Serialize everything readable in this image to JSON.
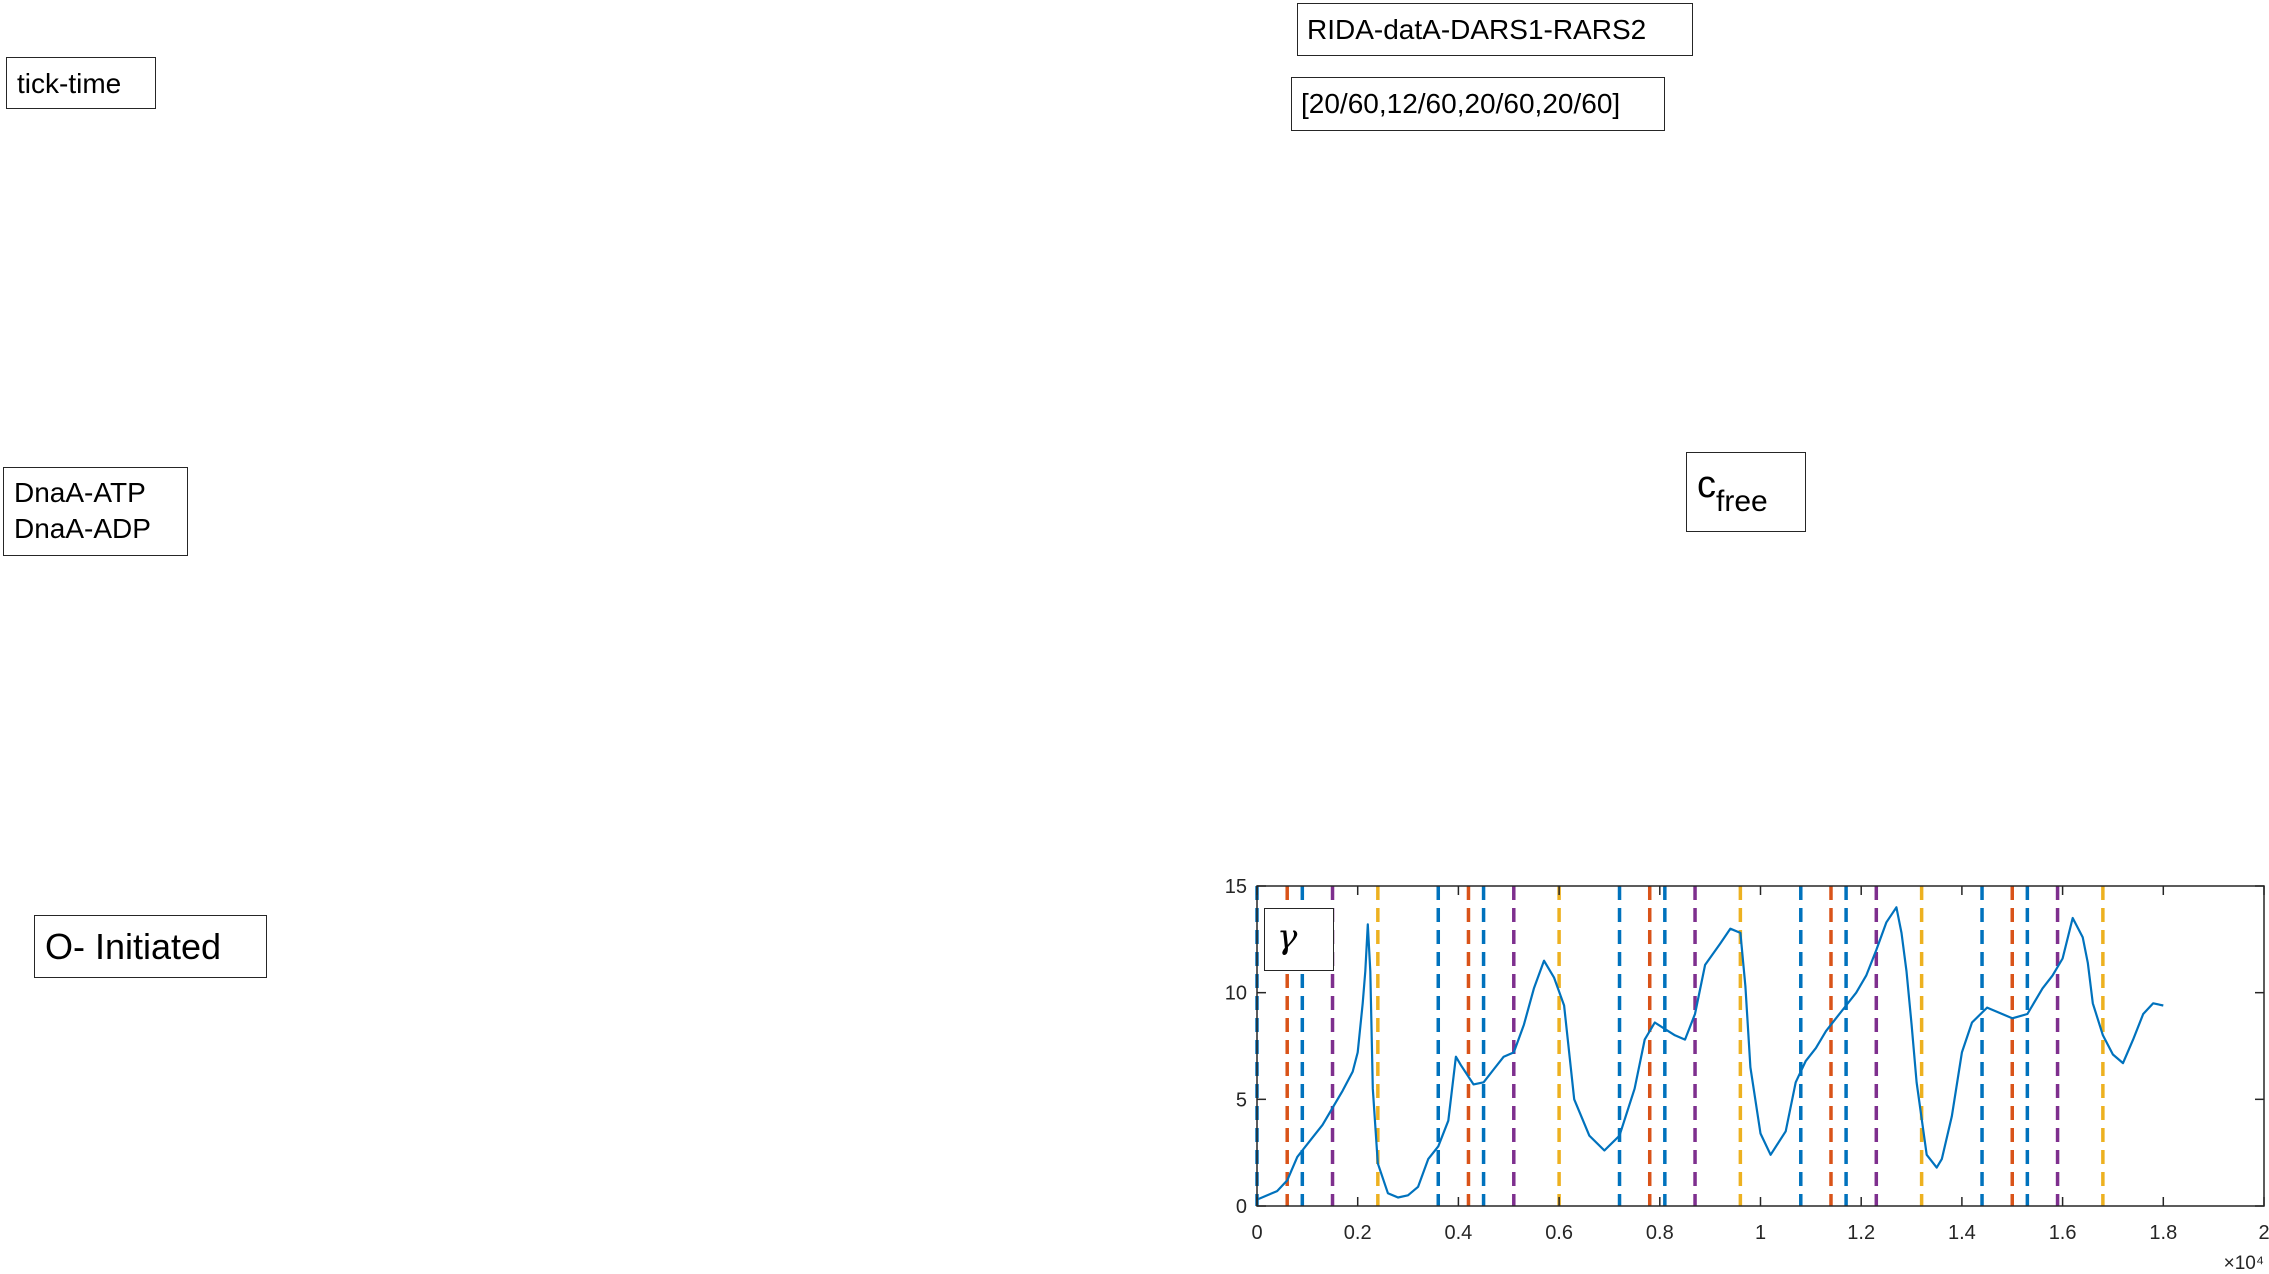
{
  "labels": {
    "tick_time": "tick-time",
    "dnaa_atp": "DnaA-ATP",
    "dnaa_adp": "DnaA-ADP",
    "initiated": "O- Initiated",
    "model": "RIDA-datA-DARS1-RARS2",
    "params": "[20/60,12/60,20/60,20/60]",
    "cfree_main": "c",
    "cfree_sub": "free",
    "gamma": "γ"
  },
  "chart_data": {
    "type": "line",
    "title": "",
    "xlabel": "",
    "ylabel": "",
    "xlim": [
      0,
      20000
    ],
    "ylim": [
      0,
      15
    ],
    "x_ticks": [
      0,
      2000,
      4000,
      6000,
      8000,
      10000,
      12000,
      14000,
      16000,
      18000,
      20000
    ],
    "x_tick_labels": [
      "0",
      "0.2",
      "0.4",
      "0.6",
      "0.8",
      "1",
      "1.2",
      "1.4",
      "1.6",
      "1.8",
      "2"
    ],
    "x_multiplier": "×10⁴",
    "y_ticks": [
      0,
      5,
      10,
      15
    ],
    "y_tick_labels": [
      "0",
      "5",
      "10",
      "15"
    ],
    "grid": false,
    "series": [
      {
        "color": "#0072BD",
        "x": [
          0,
          400,
          600,
          800,
          900,
          1100,
          1300,
          1500,
          1700,
          1900,
          2000,
          2100,
          2150,
          2200,
          2250,
          2300,
          2400,
          2600,
          2800,
          3000,
          3200,
          3400,
          3600,
          3800,
          3950,
          4050,
          4300,
          4500,
          4700,
          4900,
          5100,
          5300,
          5500,
          5700,
          5900,
          6100,
          6300,
          6600,
          6900,
          7200,
          7500,
          7700,
          7900,
          8100,
          8300,
          8500,
          8700,
          8900,
          9200,
          9400,
          9600,
          9700,
          9800,
          10000,
          10200,
          10500,
          10700,
          10900,
          11100,
          11300,
          11500,
          11700,
          11900,
          12100,
          12300,
          12500,
          12700,
          12800,
          12900,
          13000,
          13100,
          13300,
          13500,
          13600,
          13800,
          14000,
          14200,
          14500,
          14800,
          15000,
          15300,
          15600,
          15800,
          16000,
          16200,
          16400,
          16500,
          16600,
          16800,
          17000,
          17200,
          17400,
          17600,
          17800,
          18000
        ],
        "y": [
          0.3,
          0.7,
          1.2,
          2.3,
          2.6,
          3.2,
          3.8,
          4.6,
          5.4,
          6.3,
          7.2,
          9.5,
          11.0,
          13.2,
          11.0,
          5.5,
          2.0,
          0.6,
          0.4,
          0.5,
          0.9,
          2.2,
          2.8,
          4.0,
          7.0,
          6.6,
          5.7,
          5.8,
          6.4,
          7.0,
          7.2,
          8.5,
          10.2,
          11.5,
          10.7,
          9.4,
          5.0,
          3.3,
          2.6,
          3.3,
          5.5,
          7.8,
          8.6,
          8.3,
          8.0,
          7.8,
          9.0,
          11.3,
          12.3,
          13.0,
          12.8,
          10.3,
          6.5,
          3.4,
          2.4,
          3.5,
          5.8,
          6.8,
          7.4,
          8.2,
          8.8,
          9.4,
          10.0,
          10.8,
          12.0,
          13.3,
          14.0,
          12.8,
          11.0,
          8.5,
          5.8,
          2.4,
          1.8,
          2.2,
          4.2,
          7.2,
          8.6,
          9.3,
          9.0,
          8.8,
          9.0,
          10.2,
          10.8,
          11.6,
          13.5,
          12.6,
          11.4,
          9.5,
          8.0,
          7.1,
          6.7,
          7.8,
          9.0,
          9.5,
          9.4
        ]
      }
    ],
    "vlines": [
      {
        "x": 0,
        "color": "#0072BD"
      },
      {
        "x": 600,
        "color": "#D95319"
      },
      {
        "x": 900,
        "color": "#0072BD"
      },
      {
        "x": 1500,
        "color": "#7E2F8E"
      },
      {
        "x": 2400,
        "color": "#EDB120"
      },
      {
        "x": 3600,
        "color": "#0072BD"
      },
      {
        "x": 4200,
        "color": "#D95319"
      },
      {
        "x": 4500,
        "color": "#0072BD"
      },
      {
        "x": 5100,
        "color": "#7E2F8E"
      },
      {
        "x": 6000,
        "color": "#EDB120"
      },
      {
        "x": 7200,
        "color": "#0072BD"
      },
      {
        "x": 7800,
        "color": "#D95319"
      },
      {
        "x": 8100,
        "color": "#0072BD"
      },
      {
        "x": 8700,
        "color": "#7E2F8E"
      },
      {
        "x": 9600,
        "color": "#EDB120"
      },
      {
        "x": 10800,
        "color": "#0072BD"
      },
      {
        "x": 11400,
        "color": "#D95319"
      },
      {
        "x": 11700,
        "color": "#0072BD"
      },
      {
        "x": 12300,
        "color": "#7E2F8E"
      },
      {
        "x": 13200,
        "color": "#EDB120"
      },
      {
        "x": 14400,
        "color": "#0072BD"
      },
      {
        "x": 15000,
        "color": "#D95319"
      },
      {
        "x": 15300,
        "color": "#0072BD"
      },
      {
        "x": 15900,
        "color": "#7E2F8E"
      },
      {
        "x": 16800,
        "color": "#EDB120"
      }
    ]
  }
}
